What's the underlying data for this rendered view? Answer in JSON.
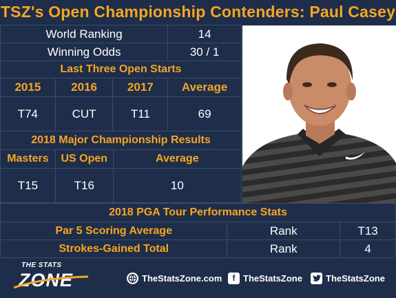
{
  "title": "TSZ's Open Championship Contenders: Paul Casey",
  "world_ranking": {
    "label": "World Ranking",
    "value": "14"
  },
  "winning_odds": {
    "label": "Winning Odds",
    "value": "30 / 1"
  },
  "last_three": {
    "heading": "Last Three Open Starts",
    "headers": [
      "2015",
      "2016",
      "2017",
      "Average"
    ],
    "values": [
      "T74",
      "CUT",
      "T11",
      "69"
    ]
  },
  "majors_2018": {
    "heading": "2018 Major Championship Results",
    "headers": [
      "Masters",
      "US Open",
      "Average"
    ],
    "values": [
      "T15",
      "T16",
      "10"
    ]
  },
  "pga_stats": {
    "heading": "2018 PGA Tour Performance Stats",
    "rows": [
      {
        "label": "Par 5 Scoring Average",
        "rank_label": "Rank",
        "value": "T13"
      },
      {
        "label": "Strokes-Gained Total",
        "rank_label": "Rank",
        "value": "4"
      }
    ]
  },
  "footer": {
    "logo_top": "THE STATS",
    "logo_bottom": "ZONE",
    "website": "TheStatsZone.com",
    "facebook": "TheStatsZone",
    "twitter": "TheStatsZone"
  },
  "colors": {
    "background": "#1e2d49",
    "accent": "#f5a623",
    "border": "#3a4c6e"
  },
  "icons": [
    "globe-icon",
    "facebook-icon",
    "twitter-icon",
    "player-photo"
  ]
}
